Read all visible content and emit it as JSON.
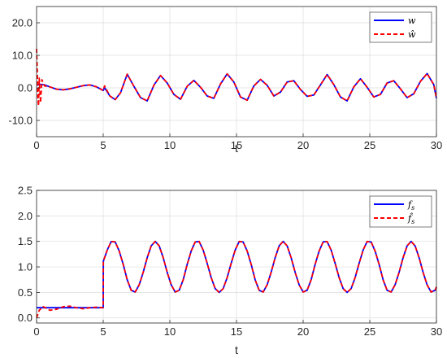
{
  "figure": {
    "background": "#ffffff"
  },
  "colors": {
    "series_solid": "#0000ff",
    "series_dashed": "#ff0000",
    "grid": "#dddddd",
    "axis": "#262626",
    "legend_border": "#262626"
  },
  "chart_data": [
    {
      "type": "line",
      "title": "",
      "xlabel": "t",
      "ylabel": "",
      "xlim": [
        0,
        30
      ],
      "ylim": [
        -15,
        25
      ],
      "xticks": [
        0,
        5,
        10,
        15,
        20,
        25,
        30
      ],
      "xtick_labels": [
        "0",
        "5",
        "10",
        "15",
        "20",
        "25",
        "30"
      ],
      "yticks": [
        20,
        10,
        0,
        -10
      ],
      "ytick_labels": [
        "20.0",
        "10.0",
        "0.0",
        "-10.0"
      ],
      "grid": true,
      "legend_position": "top-right",
      "series": [
        {
          "name": "w",
          "legend_label": "w",
          "style": "solid",
          "color": "#0000ff",
          "x": [
            0,
            0.3,
            0.6,
            1,
            1.5,
            2,
            2.5,
            3,
            3.5,
            4,
            4.5,
            5,
            5.1,
            5.5,
            5.9,
            6.3,
            6.8,
            7.3,
            7.8,
            8.3,
            8.8,
            9.3,
            9.8,
            10.3,
            10.8,
            11.3,
            11.8,
            12.3,
            12.8,
            13.3,
            13.8,
            14.3,
            14.8,
            15.3,
            15.8,
            16.3,
            16.8,
            17.3,
            17.8,
            18.3,
            18.8,
            19.3,
            19.8,
            20.3,
            20.8,
            21.3,
            21.8,
            22.3,
            22.8,
            23.3,
            23.8,
            24.3,
            24.8,
            25.3,
            25.8,
            26.3,
            26.8,
            27.3,
            27.8,
            28.3,
            28.8,
            29.3,
            29.8,
            30
          ],
          "y": [
            0.8,
            1.1,
            0.9,
            0.3,
            -0.4,
            -0.6,
            -0.3,
            0.2,
            0.7,
            0.9,
            0.3,
            -0.8,
            0.1,
            -2.5,
            -3.6,
            -1.5,
            4.2,
            0.5,
            -3.0,
            -4.0,
            0.8,
            3.8,
            1.5,
            -2.0,
            -3.5,
            0.5,
            2.3,
            0.2,
            -2.5,
            -3.2,
            1.2,
            4.3,
            1.8,
            -2.8,
            -3.8,
            0.6,
            2.6,
            0.8,
            -2.5,
            -1.3,
            1.8,
            2.2,
            -0.5,
            -2.6,
            -2.2,
            0.9,
            4.1,
            1.0,
            -2.8,
            -4.0,
            0.3,
            2.8,
            0.2,
            -2.8,
            -2.0,
            1.5,
            2.2,
            -0.3,
            -3.0,
            -1.8,
            2.0,
            4.4,
            1.0,
            -3.2
          ]
        },
        {
          "name": "ŵ",
          "legend_label": "ŵ",
          "style": "dashed",
          "color": "#ff0000",
          "x": [
            0,
            0.05,
            0.1,
            0.15,
            0.2,
            0.3,
            0.4,
            0.5,
            0.6,
            1,
            1.5,
            2,
            2.5,
            3,
            3.5,
            4,
            4.5,
            5,
            5.1,
            5.5,
            5.9,
            6.3,
            6.8,
            7.3,
            7.8,
            8.3,
            8.8,
            9.3,
            9.8,
            10.3,
            10.8,
            11.3,
            11.8,
            12.3,
            12.8,
            13.3,
            13.8,
            14.3,
            14.8,
            15.3,
            15.8,
            16.3,
            16.8,
            17.3,
            17.8,
            18.3,
            18.8,
            19.3,
            19.8,
            20.3,
            20.8,
            21.3,
            21.8,
            22.3,
            22.8,
            23.3,
            23.8,
            24.3,
            24.8,
            25.3,
            25.8,
            26.3,
            26.8,
            27.3,
            27.8,
            28.3,
            28.8,
            29.3,
            29.8,
            30
          ],
          "y": [
            12.0,
            6.0,
            -3.0,
            -5.5,
            3.0,
            -4.5,
            2.5,
            1.5,
            0.6,
            0.3,
            -0.4,
            -0.6,
            -0.3,
            0.2,
            0.7,
            0.9,
            0.3,
            -0.8,
            0.6,
            -2.5,
            -3.6,
            -1.5,
            4.2,
            0.5,
            -3.0,
            -4.0,
            0.8,
            3.8,
            1.5,
            -2.0,
            -3.5,
            0.5,
            2.3,
            0.2,
            -2.5,
            -3.2,
            1.2,
            4.3,
            1.8,
            -2.8,
            -3.8,
            0.6,
            2.6,
            0.8,
            -2.5,
            -1.3,
            1.8,
            2.2,
            -0.5,
            -2.6,
            -2.2,
            0.9,
            4.1,
            1.0,
            -2.8,
            -4.0,
            0.3,
            2.8,
            0.2,
            -2.8,
            -2.0,
            1.5,
            2.2,
            -0.3,
            -3.0,
            -1.8,
            2.0,
            4.4,
            1.0,
            -3.2
          ]
        }
      ]
    },
    {
      "type": "line",
      "title": "",
      "xlabel": "t",
      "ylabel": "",
      "xlim": [
        0,
        30
      ],
      "ylim": [
        -0.1,
        2.5
      ],
      "xticks": [
        0,
        5,
        10,
        15,
        20,
        25,
        30
      ],
      "xtick_labels": [
        "0",
        "5",
        "10",
        "15",
        "20",
        "25",
        "30"
      ],
      "yticks": [
        2.5,
        2.0,
        1.5,
        1.0,
        0.5,
        0.0
      ],
      "ytick_labels": [
        "2.5",
        "2.0",
        "1.5",
        "1.0",
        "0.5",
        "0.0"
      ],
      "grid": true,
      "legend_position": "top-right",
      "series": [
        {
          "name": "f_s",
          "legend_label": "f",
          "legend_subscript": "s",
          "style": "solid",
          "color": "#0000ff",
          "x": [
            0,
            5,
            5.01,
            5.3,
            5.6,
            5.9,
            6.2,
            6.5,
            6.8,
            7.1,
            7.4,
            7.7,
            8.0,
            8.3,
            8.6,
            8.9,
            9.2,
            9.5,
            9.8,
            10.1,
            10.4,
            10.7,
            11.0,
            11.3,
            11.6,
            11.9,
            12.2,
            12.5,
            12.8,
            13.1,
            13.4,
            13.7,
            14.0,
            14.3,
            14.6,
            14.9,
            15.2,
            15.5,
            15.8,
            16.1,
            16.4,
            16.7,
            17.0,
            17.3,
            17.6,
            17.9,
            18.2,
            18.5,
            18.8,
            19.1,
            19.4,
            19.7,
            20.0,
            20.3,
            20.6,
            20.9,
            21.2,
            21.5,
            21.8,
            22.1,
            22.4,
            22.7,
            23.0,
            23.3,
            23.6,
            23.9,
            24.2,
            24.5,
            24.8,
            25.1,
            25.4,
            25.7,
            26.0,
            26.3,
            26.6,
            26.9,
            27.2,
            27.5,
            27.8,
            28.1,
            28.4,
            28.7,
            29.0,
            29.3,
            29.6,
            29.9,
            30.0
          ],
          "y": [
            0.2,
            0.2,
            1.111,
            1.329,
            1.497,
            1.49,
            1.312,
            1.05,
            0.748,
            0.542,
            0.508,
            0.649,
            0.893,
            1.18,
            1.412,
            1.5,
            1.413,
            1.181,
            0.894,
            0.65,
            0.508,
            0.541,
            0.747,
            1.049,
            1.311,
            1.489,
            1.498,
            1.329,
            1.071,
            0.791,
            0.575,
            0.5,
            0.574,
            0.791,
            1.07,
            1.329,
            1.498,
            1.489,
            1.311,
            1.05,
            0.747,
            0.541,
            0.508,
            0.65,
            0.894,
            1.181,
            1.413,
            1.5,
            1.412,
            1.18,
            0.893,
            0.648,
            0.508,
            0.542,
            0.748,
            1.05,
            1.312,
            1.49,
            1.497,
            1.329,
            1.07,
            0.79,
            0.575,
            0.5,
            0.574,
            0.791,
            1.071,
            1.33,
            1.498,
            1.489,
            1.31,
            1.049,
            0.747,
            0.541,
            0.508,
            0.65,
            0.894,
            1.181,
            1.413,
            1.5,
            1.412,
            1.18,
            0.893,
            0.648,
            0.508,
            0.542,
            0.608
          ]
        },
        {
          "name": "f̂_s",
          "legend_label": "f̂",
          "legend_subscript": "s",
          "style": "dashed",
          "color": "#ff0000",
          "x": [
            0,
            0.2,
            0.5,
            1,
            1.5,
            2,
            2.5,
            3,
            3.5,
            4,
            4.5,
            5,
            5.01,
            5.3,
            5.6,
            5.9,
            6.2,
            6.5,
            6.8,
            7.1,
            7.4,
            7.7,
            8.0,
            8.3,
            8.6,
            8.9,
            9.2,
            9.5,
            9.8,
            10.1,
            10.4,
            10.7,
            11.0,
            11.3,
            11.6,
            11.9,
            12.2,
            12.5,
            12.8,
            13.1,
            13.4,
            13.7,
            14.0,
            14.3,
            14.6,
            14.9,
            15.2,
            15.5,
            15.8,
            16.1,
            16.4,
            16.7,
            17.0,
            17.3,
            17.6,
            17.9,
            18.2,
            18.5,
            18.8,
            19.1,
            19.4,
            19.7,
            20.0,
            20.3,
            20.6,
            20.9,
            21.2,
            21.5,
            21.8,
            22.1,
            22.4,
            22.7,
            23.0,
            23.3,
            23.6,
            23.9,
            24.2,
            24.5,
            24.8,
            25.1,
            25.4,
            25.7,
            26.0,
            26.3,
            26.6,
            26.9,
            27.2,
            27.5,
            27.8,
            28.1,
            28.4,
            28.7,
            29.0,
            29.3,
            29.6,
            29.9,
            30.0
          ],
          "y": [
            0.0,
            0.15,
            0.22,
            0.15,
            0.17,
            0.22,
            0.23,
            0.2,
            0.18,
            0.2,
            0.21,
            0.2,
            1.111,
            1.329,
            1.497,
            1.49,
            1.312,
            1.05,
            0.748,
            0.542,
            0.508,
            0.649,
            0.893,
            1.18,
            1.412,
            1.5,
            1.413,
            1.181,
            0.894,
            0.65,
            0.508,
            0.541,
            0.747,
            1.049,
            1.311,
            1.489,
            1.498,
            1.329,
            1.071,
            0.791,
            0.575,
            0.5,
            0.574,
            0.791,
            1.07,
            1.329,
            1.498,
            1.489,
            1.311,
            1.05,
            0.747,
            0.541,
            0.508,
            0.65,
            0.894,
            1.181,
            1.413,
            1.5,
            1.412,
            1.18,
            0.893,
            0.648,
            0.508,
            0.542,
            0.748,
            1.05,
            1.312,
            1.49,
            1.497,
            1.329,
            1.07,
            0.79,
            0.575,
            0.5,
            0.574,
            0.791,
            1.071,
            1.33,
            1.498,
            1.489,
            1.31,
            1.049,
            0.747,
            0.541,
            0.508,
            0.65,
            0.894,
            1.181,
            1.413,
            1.5,
            1.412,
            1.18,
            0.893,
            0.648,
            0.508,
            0.542,
            0.608
          ]
        }
      ]
    }
  ]
}
